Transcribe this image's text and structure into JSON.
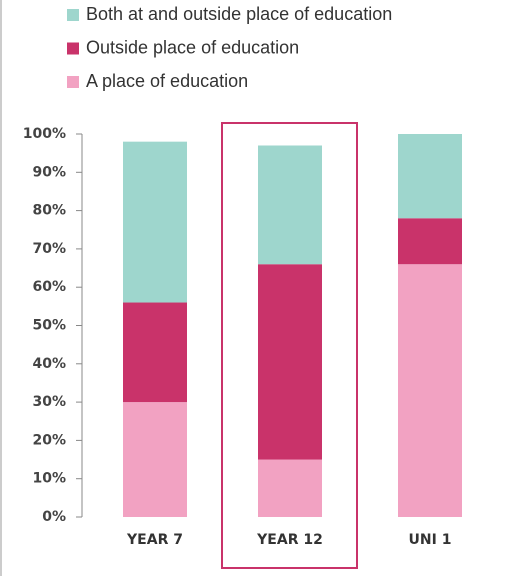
{
  "chart_data": {
    "type": "stacked_bar",
    "categories": [
      "YEAR 7",
      "YEAR 12",
      "UNI 1"
    ],
    "series": [
      {
        "name": "A place of education",
        "color": "#f2a2c2",
        "values": [
          30,
          15,
          66
        ]
      },
      {
        "name": "Outside place of education",
        "color": "#c9336a",
        "values": [
          26,
          51,
          12
        ]
      },
      {
        "name": "Both at and outside place of education",
        "color": "#9ed6cd",
        "values": [
          42,
          31,
          22
        ]
      }
    ],
    "ylim": [
      0,
      100
    ],
    "yticks": [
      {
        "value": 0,
        "label": "0%"
      },
      {
        "value": 10,
        "label": "10%"
      },
      {
        "value": 20,
        "label": "20%"
      },
      {
        "value": 30,
        "label": "30%"
      },
      {
        "value": 40,
        "label": "40%"
      },
      {
        "value": 50,
        "label": "50%"
      },
      {
        "value": 60,
        "label": "60%"
      },
      {
        "value": 70,
        "label": "70%"
      },
      {
        "value": 80,
        "label": "80%"
      },
      {
        "value": 90,
        "label": "90%"
      },
      {
        "value": 100,
        "label": "100%"
      }
    ]
  }
}
